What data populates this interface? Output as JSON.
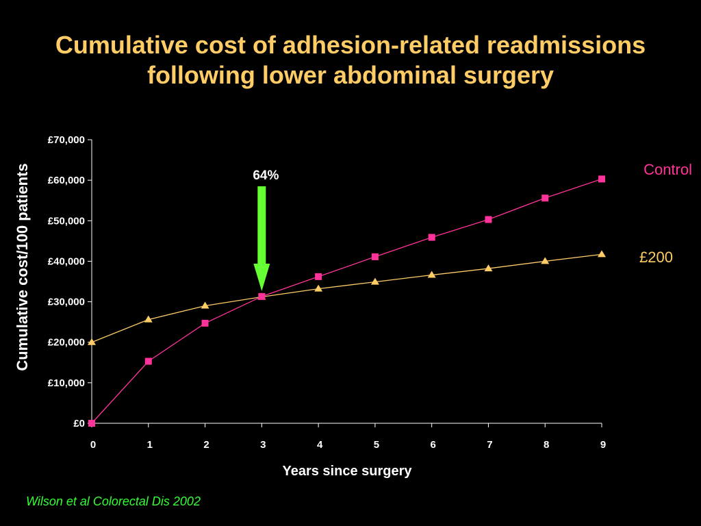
{
  "slide": {
    "title_line1": "Cumulative cost of adhesion-related readmissions",
    "title_line2": "following lower abdominal surgery",
    "citation": "Wilson et al Colorectal Dis 2002"
  },
  "colors": {
    "background": "#000000",
    "title": "#FFCC66",
    "citation": "#33FF33",
    "control": "#FF3399",
    "treated": "#FFCC66",
    "arrow": "#66FF33",
    "text": "#FFFFFF"
  },
  "chart_data": {
    "type": "line",
    "xlabel": "Years since surgery",
    "ylabel": "Cumulative cost/100 patients",
    "x": [
      0,
      1,
      2,
      3,
      4,
      5,
      6,
      7,
      8,
      9
    ],
    "xlim": [
      0,
      9
    ],
    "ylim": [
      0,
      70000
    ],
    "y_ticks": [
      0,
      10000,
      20000,
      30000,
      40000,
      50000,
      60000,
      70000
    ],
    "y_tick_labels": [
      "£0",
      "£10,000",
      "£20,000",
      "£30,000",
      "£40,000",
      "£50,000",
      "£60,000",
      "£70,000"
    ],
    "x_tick_labels": [
      "0",
      "1",
      "2",
      "3",
      "4",
      "5",
      "6",
      "7",
      "8",
      "9"
    ],
    "grid": false,
    "legend": "labels at right end of series",
    "series": [
      {
        "name": "Control",
        "marker": "square",
        "color_key": "control",
        "values": [
          0,
          15300,
          24700,
          31300,
          36200,
          41100,
          45900,
          50300,
          55600,
          60300
        ]
      },
      {
        "name": "£200",
        "marker": "triangle",
        "color_key": "treated",
        "values": [
          20000,
          25600,
          29000,
          31200,
          33200,
          34900,
          36600,
          38200,
          40000,
          41700
        ]
      }
    ],
    "annotations": [
      {
        "text": "64%",
        "x": 3,
        "type": "down-arrow",
        "color_key": "arrow"
      }
    ]
  }
}
